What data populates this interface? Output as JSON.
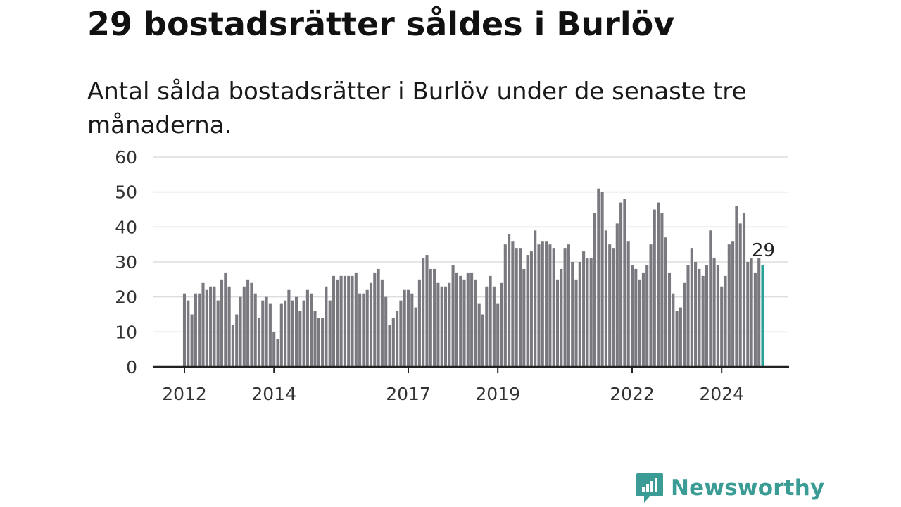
{
  "title": "29 bostadsrätter såldes i Burlöv",
  "subtitle": "Antal sålda bostadsrätter i Burlöv under de senaste tre månaderna.",
  "brand": {
    "name": "Newsworthy",
    "icon": "newsworthy-logo-icon"
  },
  "colors": {
    "bar": "#7a7980",
    "highlight": "#2aa198",
    "grid": "#dddddd",
    "axis": "#222222",
    "brand": "#3a9c95"
  },
  "chart_data": {
    "type": "bar",
    "x_start": "2012-01",
    "ylim": [
      0,
      60
    ],
    "yticks": [
      0,
      10,
      20,
      30,
      40,
      50,
      60
    ],
    "xticks": [
      {
        "label": "2012",
        "index": 0
      },
      {
        "label": "2014",
        "index": 24
      },
      {
        "label": "2017",
        "index": 60
      },
      {
        "label": "2019",
        "index": 84
      },
      {
        "label": "2022",
        "index": 120
      },
      {
        "label": "2024",
        "index": 144
      }
    ],
    "values": [
      21,
      19,
      15,
      21,
      21,
      24,
      22,
      23,
      23,
      19,
      25,
      27,
      23,
      12,
      15,
      20,
      23,
      25,
      24,
      21,
      14,
      19,
      20,
      18,
      10,
      8,
      18,
      19,
      22,
      19,
      20,
      16,
      19,
      22,
      21,
      16,
      14,
      14,
      23,
      19,
      26,
      25,
      26,
      26,
      26,
      26,
      27,
      21,
      21,
      22,
      24,
      27,
      28,
      25,
      20,
      12,
      14,
      16,
      19,
      22,
      22,
      21,
      17,
      25,
      31,
      32,
      28,
      28,
      24,
      23,
      23,
      24,
      29,
      27,
      26,
      25,
      27,
      27,
      25,
      18,
      15,
      23,
      26,
      23,
      18,
      24,
      35,
      38,
      36,
      34,
      34,
      28,
      32,
      33,
      39,
      35,
      36,
      36,
      35,
      34,
      25,
      28,
      34,
      35,
      30,
      25,
      30,
      33,
      31,
      31,
      44,
      51,
      50,
      39,
      35,
      34,
      41,
      47,
      48,
      36,
      29,
      28,
      25,
      27,
      29,
      35,
      45,
      47,
      44,
      37,
      27,
      21,
      16,
      17,
      24,
      29,
      34,
      30,
      28,
      26,
      29,
      39,
      31,
      29,
      23,
      26,
      35,
      36,
      46,
      41,
      44,
      30,
      31,
      27,
      31,
      29
    ],
    "highlight_index": 155,
    "highlight_label": "29"
  }
}
